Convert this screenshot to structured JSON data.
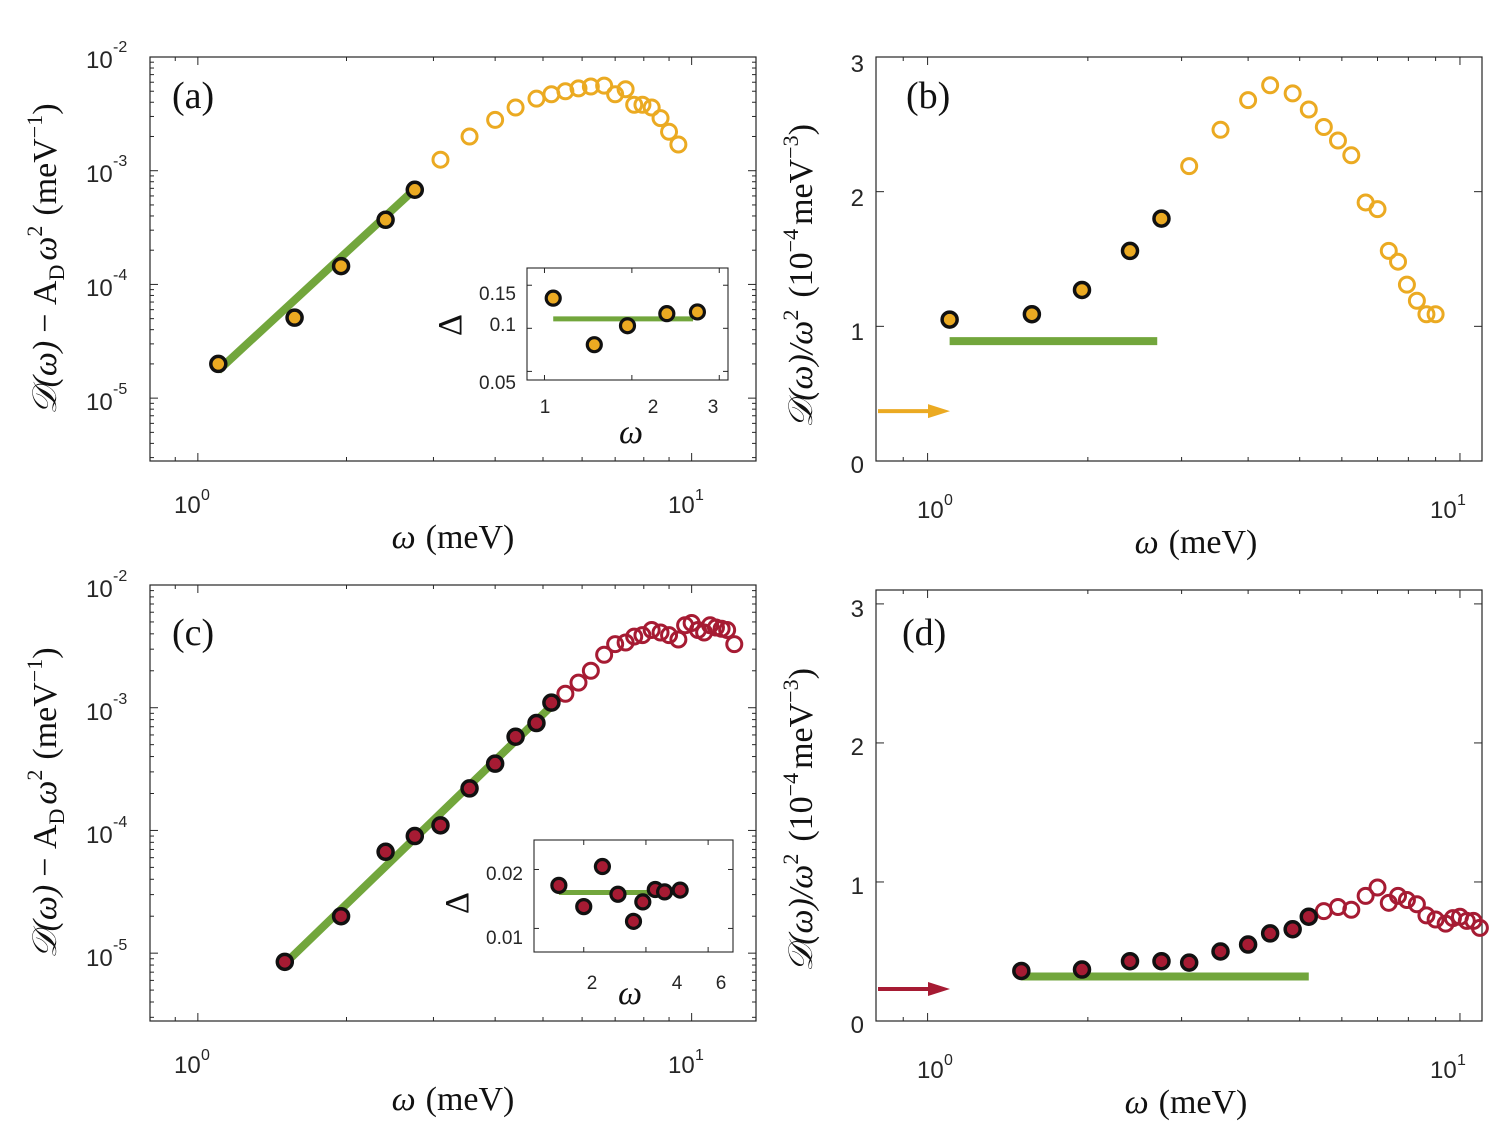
{
  "colors": {
    "yellow": "#EBAA22",
    "crimson": "#A61B33",
    "fit": "#72A63C",
    "axis": "#262626",
    "marker_edge": "#111111"
  },
  "axis_text": {
    "x_label_b": "(meV)",
    "y_label_ab_italic": "𝒟(ω)",
    "y_label_ab_mid": "− A",
    "y_label_ab_sub": "D",
    "y_label_ab_omega": "ω",
    "y_label_ab_exp": "2",
    "y_label_unit_open": "(meV",
    "y_label_unit_exp": "−1",
    "y_label_unit_close": ")",
    "y_label_bd_main": "𝒟(ω)/ω",
    "y_label_bd_exp": "2",
    "y_label_bd_unit_open": "(10",
    "y_label_bd_unit_exp": "−4",
    "y_label_bd_unit_mid": "meV",
    "y_label_bd_unit_exp2": "−3",
    "y_label_bd_unit_close": ")",
    "x_label_omega": "ω",
    "inset_x_label": "ω",
    "inset_y_label": "Δ",
    "log_base": "10",
    "x_tick_exp_0": "0",
    "x_tick_exp_1": "1"
  },
  "chart_data": [
    {
      "panel": "a",
      "label": "(a)",
      "type": "scatter",
      "xscale": "log",
      "yscale": "log",
      "xlim": [
        0.8,
        13.5
      ],
      "ylim": [
        2.8e-06,
        0.01
      ],
      "xlabel": "ω (meV)",
      "ylabel": "𝒟(ω) − A_D ω² (meV⁻¹)",
      "x_ticks": [
        1,
        10
      ],
      "y_ticks": [
        1e-05,
        0.0001,
        0.001,
        0.01
      ],
      "y_tick_exponents": [
        "-5",
        "-4",
        "-3",
        "-2"
      ],
      "filled": {
        "x": [
          1.1,
          1.57,
          1.95,
          2.4,
          2.75
        ],
        "y": [
          2e-05,
          5.1e-05,
          0.000145,
          0.00037,
          0.00068
        ]
      },
      "open": {
        "x": [
          3.1,
          3.55,
          4.0,
          4.4,
          4.85,
          5.2,
          5.55,
          5.9,
          6.25,
          6.65,
          7.0,
          7.35,
          7.65,
          7.95,
          8.3,
          8.65,
          9.0,
          9.4
        ],
        "y": [
          0.00125,
          0.002,
          0.0028,
          0.0036,
          0.0043,
          0.0047,
          0.005,
          0.0053,
          0.0055,
          0.0056,
          0.0047,
          0.0052,
          0.0038,
          0.0038,
          0.0036,
          0.0029,
          0.0022,
          0.0017
        ]
      },
      "fit": {
        "x": [
          1.1,
          2.7
        ],
        "y": [
          1.75e-05,
          0.00064
        ]
      },
      "inset": {
        "xlim": [
          0.8,
          3.1
        ],
        "ylim": [
          0.04,
          0.17
        ],
        "x_ticks": [
          1,
          2,
          3
        ],
        "y_ticks": [
          0.05,
          0.1,
          0.15
        ],
        "x_tick_labels": [
          "1",
          "2",
          "3"
        ],
        "y_tick_labels": [
          "0.05",
          "0.1",
          "0.15"
        ],
        "x": [
          1.1,
          1.57,
          1.95,
          2.4,
          2.75
        ],
        "y": [
          0.135,
          0.081,
          0.103,
          0.117,
          0.119
        ],
        "fit_y": 0.111,
        "fit_x": [
          1.1,
          2.7
        ]
      }
    },
    {
      "panel": "b",
      "label": "(b)",
      "type": "scatter",
      "xscale": "log",
      "yscale": "linear",
      "xlim": [
        0.8,
        11
      ],
      "ylim": [
        0,
        3
      ],
      "xlabel": "ω (meV)",
      "ylabel": "𝒟(ω)/ω² (10⁻⁴ meV⁻³)",
      "x_ticks": [
        1,
        10
      ],
      "y_ticks": [
        0,
        1,
        2,
        3
      ],
      "y_tick_labels": [
        "0",
        "1",
        "2",
        "3"
      ],
      "filled": {
        "x": [
          1.1,
          1.57,
          1.95,
          2.4,
          2.75
        ],
        "y": [
          1.05,
          1.09,
          1.27,
          1.56,
          1.8
        ]
      },
      "open": {
        "x": [
          3.1,
          3.55,
          4.0,
          4.4,
          4.85,
          5.2,
          5.55,
          5.9,
          6.25,
          6.65,
          7.0,
          7.35,
          7.65,
          7.95,
          8.3,
          8.65,
          9.0
        ],
        "y": [
          2.19,
          2.46,
          2.68,
          2.79,
          2.73,
          2.61,
          2.48,
          2.38,
          2.27,
          1.92,
          1.87,
          1.56,
          1.48,
          1.31,
          1.19,
          1.09,
          1.09
        ]
      },
      "fit": {
        "x": [
          1.1,
          2.7
        ],
        "y": [
          0.89,
          0.89
        ]
      },
      "arrow_value": 0.37
    },
    {
      "panel": "c",
      "label": "(c)",
      "type": "scatter",
      "xscale": "log",
      "yscale": "log",
      "xlim": [
        0.8,
        13.5
      ],
      "ylim": [
        2.8e-06,
        0.01
      ],
      "xlabel": "ω (meV)",
      "ylabel": "𝒟(ω) − A_D ω² (meV⁻¹)",
      "x_ticks": [
        1,
        10
      ],
      "y_ticks": [
        1e-05,
        0.0001,
        0.001,
        0.01
      ],
      "y_tick_exponents": [
        "-5",
        "-4",
        "-3",
        "-2"
      ],
      "filled": {
        "x": [
          1.5,
          1.95,
          2.4,
          2.75,
          3.1,
          3.55,
          4.0,
          4.4,
          4.85,
          5.2
        ],
        "y": [
          8.5e-06,
          2e-05,
          6.7e-05,
          9e-05,
          0.00011,
          0.00022,
          0.00035,
          0.00058,
          0.00075,
          0.0011
        ]
      },
      "open": {
        "x": [
          5.55,
          5.9,
          6.25,
          6.65,
          7.0,
          7.35,
          7.65,
          7.95,
          8.3,
          8.65,
          9.0,
          9.4,
          9.7,
          10.0,
          10.3,
          10.6,
          10.9,
          11.2,
          11.5,
          11.8,
          12.2
        ],
        "y": [
          0.0013,
          0.0016,
          0.002,
          0.0027,
          0.0033,
          0.0034,
          0.0038,
          0.0039,
          0.0043,
          0.0041,
          0.0039,
          0.0036,
          0.0047,
          0.0049,
          0.0043,
          0.0041,
          0.0047,
          0.0045,
          0.0044,
          0.0043,
          0.0033
        ]
      },
      "fit": {
        "x": [
          1.5,
          5.2
        ],
        "y": [
          8.2e-06,
          0.00103
        ]
      },
      "inset": {
        "xlim": [
          0.4,
          6.8
        ],
        "ylim": [
          0.006,
          0.025
        ],
        "x_ticks": [
          2,
          4,
          6
        ],
        "y_ticks": [
          0.01,
          0.02
        ],
        "x_tick_labels": [
          "2",
          "4",
          "6"
        ],
        "y_tick_labels": [
          "0.01",
          "0.02"
        ],
        "x": [
          1.2,
          2.0,
          2.6,
          3.1,
          3.6,
          3.9,
          4.3,
          4.6,
          5.1
        ],
        "y": [
          0.0173,
          0.0137,
          0.0205,
          0.0158,
          0.0112,
          0.0145,
          0.0166,
          0.0162,
          0.0165
        ],
        "fit_y": 0.0161,
        "fit_x": [
          1.2,
          5.1
        ]
      }
    },
    {
      "panel": "d",
      "label": "(d)",
      "type": "scatter",
      "xscale": "log",
      "yscale": "linear",
      "xlim": [
        0.8,
        11
      ],
      "ylim": [
        0,
        3.1
      ],
      "xlabel": "ω (meV)",
      "ylabel": "𝒟(ω)/ω² (10⁻⁴ meV⁻³)",
      "x_ticks": [
        1,
        10
      ],
      "y_ticks": [
        0,
        1,
        2,
        3
      ],
      "y_tick_labels": [
        "0",
        "1",
        "2",
        "3"
      ],
      "filled": {
        "x": [
          1.5,
          1.95,
          2.4,
          2.75,
          3.1,
          3.55,
          4.0,
          4.4,
          4.85,
          5.2
        ],
        "y": [
          0.36,
          0.37,
          0.43,
          0.43,
          0.42,
          0.5,
          0.55,
          0.63,
          0.66,
          0.75
        ]
      },
      "open": {
        "x": [
          5.55,
          5.9,
          6.25,
          6.65,
          7.0,
          7.35,
          7.65,
          7.95,
          8.3,
          8.65,
          9.0,
          9.4,
          9.7,
          10.0,
          10.3,
          10.6,
          10.9
        ],
        "y": [
          0.79,
          0.82,
          0.8,
          0.9,
          0.96,
          0.85,
          0.9,
          0.87,
          0.84,
          0.76,
          0.73,
          0.7,
          0.74,
          0.75,
          0.72,
          0.72,
          0.67
        ]
      },
      "fit": {
        "x": [
          1.5,
          5.2
        ],
        "y": [
          0.32,
          0.32
        ]
      },
      "arrow_value": 0.23
    }
  ]
}
